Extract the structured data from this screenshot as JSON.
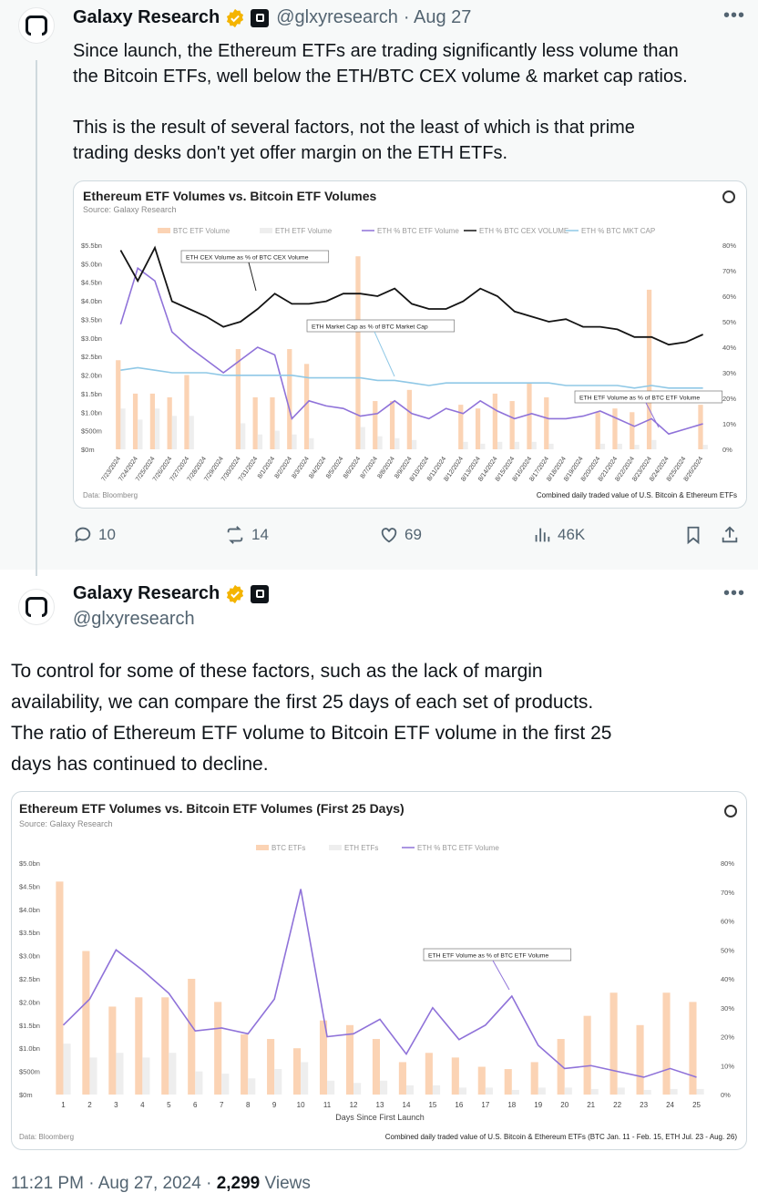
{
  "colors": {
    "btc_bar": "#fbd3b4",
    "eth_bar": "#eeeeee",
    "eth_pct_btc_etf": "#8f72d9",
    "eth_pct_btc_cex": "#141414",
    "eth_pct_btc_mktcap": "#8fc8e6",
    "verified": "#f4b400",
    "muted": "#536471"
  },
  "tweet1": {
    "name": "Galaxy Research",
    "handle": "@glxyresearch",
    "date": "· Aug 27",
    "more_icon": "ellipsis-icon",
    "text": "Since launch, the Ethereum ETFs are trading significantly less volume than\nthe Bitcoin ETFs, well below the ETH/BTC CEX volume & market cap ratios.\n\nThis is the result of several factors, not the least of which is that prime\ntrading desks don't yet offer margin on the ETH ETFs.",
    "replies": "10",
    "reposts": "14",
    "likes": "69",
    "views": "46K"
  },
  "tweet2": {
    "name": "Galaxy Research",
    "handle": "@glxyresearch",
    "text": "To control for some of these factors, such as the lack of margin\navailability, we can compare the first 25 days of each set of products.\nThe ratio of Ethereum ETF volume to Bitcoin ETF volume in the first 25\ndays has continued to decline.",
    "time": "11:21 PM · Aug 27, 2024 · ",
    "views_count": "2,299",
    "views_label": " Views"
  },
  "chart_data": [
    {
      "type": "bar",
      "title": "Ethereum ETF Volumes vs. Bitcoin ETF Volumes",
      "source": "Source: Galaxy Research",
      "data_note": "Data: Bloomberg",
      "footnote": "Combined daily traded value of U.S. Bitcoin & Ethereum ETFs",
      "legend": [
        "BTC ETF Volume",
        "ETH ETF Volume",
        "ETH % BTC ETF Volume",
        "ETH % BTC CEX VOLUME",
        "ETH % BTC MKT CAP"
      ],
      "legend_position": "top",
      "categories": [
        "7/23/2024",
        "7/24/2024",
        "7/25/2024",
        "7/26/2024",
        "7/27/2024",
        "7/28/2024",
        "7/29/2024",
        "7/30/2024",
        "7/31/2024",
        "8/1/2024",
        "8/2/2024",
        "8/3/2024",
        "8/4/2024",
        "8/5/2024",
        "8/6/2024",
        "8/7/2024",
        "8/8/2024",
        "8/9/2024",
        "8/10/2024",
        "8/11/2024",
        "8/12/2024",
        "8/13/2024",
        "8/14/2024",
        "8/15/2024",
        "8/16/2024",
        "8/17/2024",
        "8/18/2024",
        "8/19/2024",
        "8/20/2024",
        "8/21/2024",
        "8/22/2024",
        "8/23/2024",
        "8/24/2024",
        "8/25/2024",
        "8/26/2024"
      ],
      "y_left_ticks": [
        "$5.5bn",
        "$5.0bn",
        "$4.5bn",
        "$4.0bn",
        "$3.5bn",
        "$3.0bn",
        "$2.5bn",
        "$2.0bn",
        "$1.5bn",
        "$1.0bn",
        "$500m",
        "$0m"
      ],
      "y_right_ticks": [
        "80%",
        "70%",
        "60%",
        "50%",
        "40%",
        "30%",
        "20%",
        "10%",
        "0%"
      ],
      "ylim_left": [
        0,
        5.5
      ],
      "ylim_right": [
        0,
        80
      ],
      "series": [
        {
          "name": "BTC ETF Volume",
          "axis": "left",
          "values": [
            2.4,
            1.5,
            1.5,
            1.4,
            2.0,
            0,
            0,
            2.7,
            1.4,
            1.4,
            2.7,
            2.3,
            0,
            0,
            5.2,
            1.3,
            1.3,
            1.6,
            0,
            0,
            1.2,
            1.1,
            1.5,
            1.3,
            1.8,
            1.4,
            0,
            0,
            1.0,
            1.1,
            1.0,
            4.3,
            0,
            0,
            1.2
          ]
        },
        {
          "name": "ETH ETF Volume",
          "axis": "left",
          "values": [
            1.1,
            0.8,
            1.1,
            0.9,
            0.9,
            0,
            0,
            0.7,
            0.4,
            0.5,
            0.4,
            0.3,
            0,
            0,
            0.6,
            0.35,
            0.3,
            0.25,
            0,
            0,
            0.2,
            0.15,
            0.2,
            0.2,
            0.2,
            0.15,
            0,
            0,
            0.15,
            0.15,
            0.12,
            0.25,
            0,
            0,
            0.12
          ]
        },
        {
          "name": "ETH % BTC ETF Volume",
          "axis": "right",
          "values": [
            49,
            71,
            66,
            46,
            40,
            35,
            30,
            35,
            40,
            37,
            12,
            19,
            17,
            16,
            13,
            14,
            19,
            14,
            12,
            16,
            14,
            19,
            15,
            12,
            14,
            12,
            12,
            13,
            15,
            12,
            9,
            12,
            6,
            8,
            10
          ]
        },
        {
          "name": "ETH % BTC CEX VOLUME",
          "axis": "right",
          "values": [
            78,
            66,
            79,
            58,
            55,
            52,
            48,
            50,
            55,
            61,
            57,
            57,
            58,
            61,
            61,
            60,
            63,
            57,
            55,
            55,
            58,
            63,
            60,
            54,
            52,
            50,
            51,
            48,
            48,
            47,
            44,
            44,
            41,
            42,
            45
          ]
        },
        {
          "name": "ETH % BTC MKT CAP",
          "axis": "right",
          "values": [
            31,
            32,
            31,
            30,
            30,
            30,
            29,
            29,
            29,
            29,
            29,
            28,
            28,
            28,
            28,
            27,
            27,
            26,
            25,
            26,
            26,
            26,
            26,
            26,
            26,
            26,
            25,
            25,
            25,
            25,
            24,
            25,
            24,
            24,
            24
          ]
        }
      ],
      "annotations": [
        "ETH CEX Volume as % of BTC CEX Volume",
        "ETH Market Cap as % of BTC Market Cap",
        "ETH ETF Volume as % of BTC ETF Volume"
      ]
    },
    {
      "type": "bar",
      "title": "Ethereum ETF Volumes vs. Bitcoin ETF Volumes (First 25 Days)",
      "source": "Source: Galaxy Research",
      "data_note": "Data: Bloomberg",
      "footnote": "Combined daily traded value of U.S. Bitcoin & Ethereum ETFs (BTC Jan. 11 - Feb. 15, ETH Jul. 23 - Aug. 26)",
      "xlabel": "Days Since First Launch",
      "legend": [
        "BTC ETFs",
        "ETH ETFs",
        "ETH % BTC ETF Volume"
      ],
      "legend_position": "top",
      "categories": [
        "1",
        "2",
        "3",
        "4",
        "5",
        "6",
        "7",
        "8",
        "9",
        "10",
        "11",
        "12",
        "13",
        "14",
        "15",
        "16",
        "17",
        "18",
        "19",
        "20",
        "21",
        "22",
        "23",
        "24",
        "25"
      ],
      "y_left_ticks": [
        "$5.0bn",
        "$4.5bn",
        "$4.0bn",
        "$3.5bn",
        "$3.0bn",
        "$2.5bn",
        "$2.0bn",
        "$1.5bn",
        "$1.0bn",
        "$500m",
        "$0m"
      ],
      "y_right_ticks": [
        "80%",
        "70%",
        "60%",
        "50%",
        "40%",
        "30%",
        "20%",
        "10%",
        "0%"
      ],
      "ylim_left": [
        0,
        5.0
      ],
      "ylim_right": [
        0,
        80
      ],
      "series": [
        {
          "name": "BTC ETFs",
          "axis": "left",
          "values": [
            4.6,
            3.1,
            1.9,
            2.1,
            2.1,
            2.5,
            2.0,
            1.3,
            1.2,
            1.0,
            1.6,
            1.5,
            1.2,
            0.7,
            0.9,
            0.8,
            0.6,
            0.55,
            0.7,
            1.2,
            1.7,
            2.2,
            1.5,
            2.2,
            2.0
          ]
        },
        {
          "name": "ETH ETFs",
          "axis": "left",
          "values": [
            1.1,
            0.8,
            0.9,
            0.8,
            0.9,
            0.5,
            0.45,
            0.35,
            0.55,
            0.7,
            0.3,
            0.25,
            0.3,
            0.2,
            0.2,
            0.15,
            0.15,
            0.1,
            0.15,
            0.15,
            0.12,
            0.15,
            0.1,
            0.12,
            0.12
          ]
        },
        {
          "name": "ETH % BTC ETF Volume",
          "axis": "right",
          "values": [
            24,
            33,
            50,
            43,
            35,
            22,
            23,
            21,
            33,
            71,
            20,
            21,
            26,
            14,
            30,
            19,
            24,
            34,
            17,
            9,
            10,
            8,
            6,
            9,
            6
          ]
        }
      ],
      "annotations": [
        "ETH ETF Volume as % of BTC ETF Volume"
      ]
    }
  ]
}
